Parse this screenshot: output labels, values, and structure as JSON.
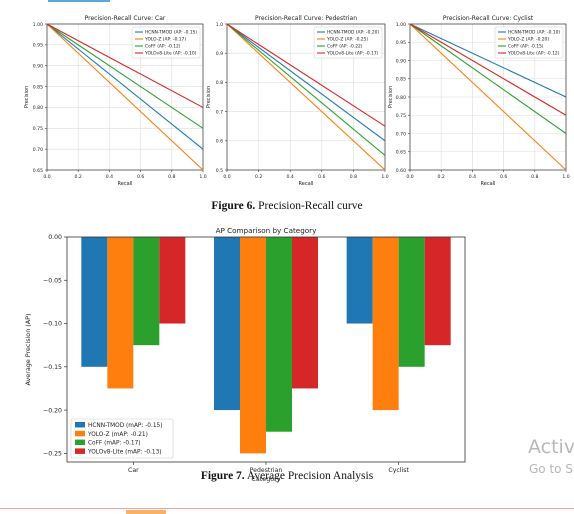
{
  "colors": {
    "blue": "#1f77b4",
    "orange": "#ff7f0e",
    "green": "#2ca02c",
    "red": "#d62728"
  },
  "figure6": {
    "caption_bold": "Figure 6.",
    "caption_text": " Precision-Recall curve"
  },
  "figure7": {
    "caption_bold": "Figure 7.",
    "caption_text": " Average Precision Analysis"
  },
  "watermark": {
    "line1": "Activ",
    "line2": "Go to S"
  },
  "chart_data": [
    {
      "type": "line",
      "title": "Precision-Recall Curve: Car",
      "xlabel": "Recall",
      "ylabel": "Precision",
      "xlim": [
        0,
        1
      ],
      "ylim": [
        0.65,
        1.0
      ],
      "xticks": [
        "0.0",
        "0.2",
        "0.4",
        "0.6",
        "0.8",
        "1.0"
      ],
      "yticks": [
        "0.65",
        "0.70",
        "0.75",
        "0.80",
        "0.85",
        "0.90",
        "0.95",
        "1.00"
      ],
      "grid": true,
      "legend_position": "top-right",
      "series": [
        {
          "name": "HCNN-TMOD (AP: -0.15)",
          "x": [
            0,
            1
          ],
          "y": [
            1.0,
            0.7
          ]
        },
        {
          "name": "YOLO-Z (AP: -0.17)",
          "x": [
            0,
            1
          ],
          "y": [
            1.0,
            0.65
          ]
        },
        {
          "name": "CoFF (AP: -0.12)",
          "x": [
            0,
            1
          ],
          "y": [
            1.0,
            0.75
          ]
        },
        {
          "name": "YOLOv8-Lite (AP: -0.10)",
          "x": [
            0,
            1
          ],
          "y": [
            1.0,
            0.8
          ]
        }
      ]
    },
    {
      "type": "line",
      "title": "Precision-Recall Curve: Pedestrian",
      "xlabel": "Recall",
      "ylabel": "Precision",
      "xlim": [
        0,
        1
      ],
      "ylim": [
        0.5,
        1.0
      ],
      "xticks": [
        "0.0",
        "0.2",
        "0.4",
        "0.6",
        "0.8",
        "1.0"
      ],
      "yticks": [
        "0.5",
        "0.6",
        "0.7",
        "0.8",
        "0.9",
        "1.0"
      ],
      "grid": true,
      "legend_position": "top-right",
      "series": [
        {
          "name": "HCNN-TMOD (AP: -0.20)",
          "x": [
            0,
            1
          ],
          "y": [
            1.0,
            0.6
          ]
        },
        {
          "name": "YOLO-Z (AP: -0.25)",
          "x": [
            0,
            1
          ],
          "y": [
            1.0,
            0.5
          ]
        },
        {
          "name": "CoFF (AP: -0.22)",
          "x": [
            0,
            1
          ],
          "y": [
            1.0,
            0.55
          ]
        },
        {
          "name": "YOLOv8-Lite (AP: -0.17)",
          "x": [
            0,
            1
          ],
          "y": [
            1.0,
            0.65
          ]
        }
      ]
    },
    {
      "type": "line",
      "title": "Precision-Recall Curve: Cyclist",
      "xlabel": "Recall",
      "ylabel": "Precision",
      "xlim": [
        0,
        1
      ],
      "ylim": [
        0.6,
        1.0
      ],
      "xticks": [
        "0.0",
        "0.2",
        "0.4",
        "0.6",
        "0.8",
        "1.0"
      ],
      "yticks": [
        "0.60",
        "0.65",
        "0.70",
        "0.75",
        "0.80",
        "0.85",
        "0.90",
        "0.95",
        "1.00"
      ],
      "grid": true,
      "legend_position": "top-right",
      "series": [
        {
          "name": "HCNN-TMOD (AP: -0.10)",
          "x": [
            0,
            1
          ],
          "y": [
            1.0,
            0.8
          ]
        },
        {
          "name": "YOLO-Z (AP: -0.20)",
          "x": [
            0,
            1
          ],
          "y": [
            1.0,
            0.6
          ]
        },
        {
          "name": "CoFF (AP: -0.15)",
          "x": [
            0,
            1
          ],
          "y": [
            1.0,
            0.7
          ]
        },
        {
          "name": "YOLOv8-Lite (AP: -0.12)",
          "x": [
            0,
            1
          ],
          "y": [
            1.0,
            0.75
          ]
        }
      ]
    },
    {
      "type": "bar",
      "title": "AP Comparison by Category",
      "xlabel": "Category",
      "ylabel": "Average Precision (AP)",
      "categories": [
        "Car",
        "Pedestrian",
        "Cyclist"
      ],
      "ylim": [
        -0.26,
        0.0
      ],
      "yticks": [
        "0.00",
        "−0.05",
        "−0.10",
        "−0.15",
        "−0.20",
        "−0.25"
      ],
      "grid": false,
      "legend_position": "bottom-left",
      "series": [
        {
          "name": "HCNN-TMOD (mAP: -0.15)",
          "values": [
            -0.15,
            -0.2,
            -0.1
          ]
        },
        {
          "name": "YOLO-Z (mAP: -0.21)",
          "values": [
            -0.175,
            -0.25,
            -0.2
          ]
        },
        {
          "name": "CoFF (mAP: -0.17)",
          "values": [
            -0.125,
            -0.225,
            -0.15
          ]
        },
        {
          "name": "YOLOv8-Lite (mAP: -0.13)",
          "values": [
            -0.1,
            -0.175,
            -0.125
          ]
        }
      ]
    }
  ]
}
